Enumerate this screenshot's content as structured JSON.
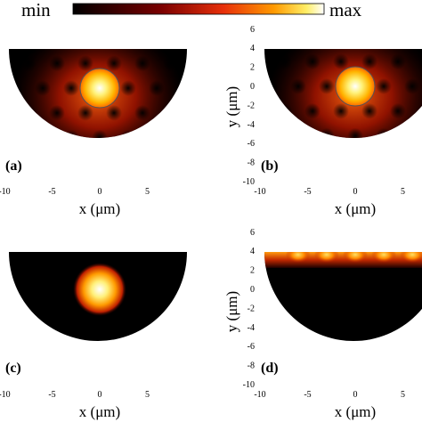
{
  "colorbar": {
    "min_label": "min",
    "max_label": "max"
  },
  "axis_unit_label": "x (μm)",
  "y_axis_label": "y (μm)",
  "panels": [
    {
      "label": "(a)",
      "xlabel": "x (μm)",
      "xticks": [
        "-10",
        "-5",
        "0",
        "5"
      ],
      "pattern": "lattice"
    },
    {
      "label": "(b)",
      "xlabel": "x (μm)",
      "xticks": [
        "-10",
        "-5",
        "0",
        "5"
      ],
      "ylabel": "y (μm)",
      "yticks": [
        "6",
        "4",
        "2",
        "0",
        "-2",
        "-4",
        "-6",
        "-8",
        "-10"
      ],
      "pattern": "lattice"
    },
    {
      "label": "(c)",
      "xlabel": "x (μm)",
      "xticks": [
        "-10",
        "-5",
        "0",
        "5"
      ],
      "pattern": "core"
    },
    {
      "label": "(d)",
      "xlabel": "x (μm)",
      "xticks": [
        "-10",
        "-5",
        "0",
        "5"
      ],
      "ylabel": "y (μm)",
      "yticks": [
        "6",
        "4",
        "2",
        "0",
        "-2",
        "-4",
        "-6",
        "-8",
        "-10"
      ],
      "pattern": "surface"
    }
  ],
  "colors": {
    "dark": "#000000",
    "red": "#c81e00",
    "orange": "#ff8c00",
    "yellow": "#ffee66",
    "white": "#ffffff"
  }
}
